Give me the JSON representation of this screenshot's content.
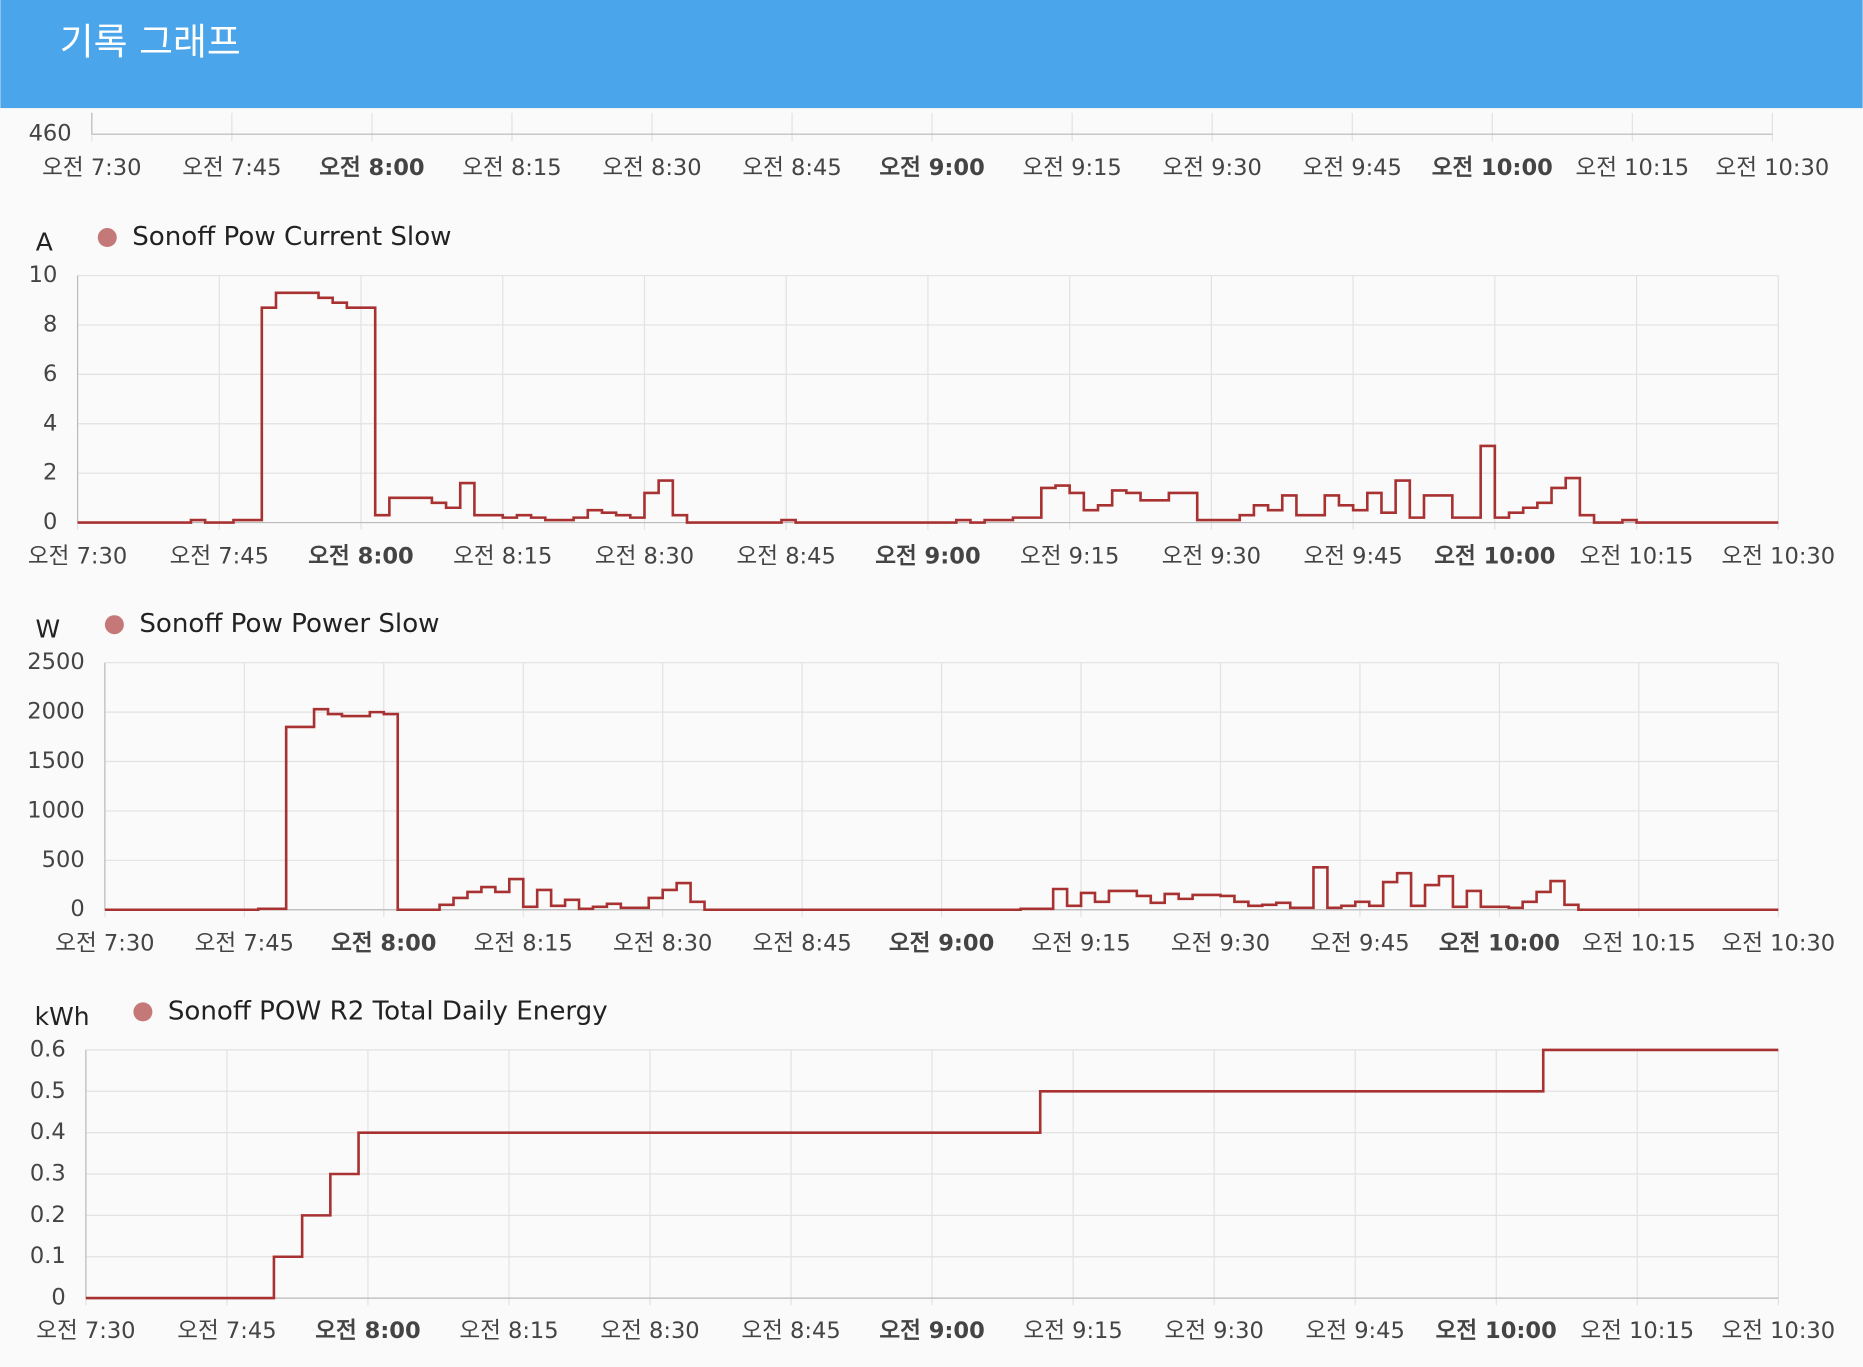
{
  "header": {
    "title": "기록 그래프"
  },
  "chart_data": [
    {
      "type": "line",
      "grid": true,
      "yticks": [
        460
      ],
      "xlim": [
        450,
        630
      ],
      "xticks": [
        {
          "value": 450,
          "label": "오전 7:30"
        },
        {
          "value": 465,
          "label": "오전 7:45"
        },
        {
          "value": 480,
          "label": "오전 8:00"
        },
        {
          "value": 495,
          "label": "오전 8:15"
        },
        {
          "value": 510,
          "label": "오전 8:30"
        },
        {
          "value": 525,
          "label": "오전 8:45"
        },
        {
          "value": 540,
          "label": "오전 9:00"
        },
        {
          "value": 555,
          "label": "오전 9:15"
        },
        {
          "value": 570,
          "label": "오전 9:30"
        },
        {
          "value": 585,
          "label": "오전 9:45"
        },
        {
          "value": 600,
          "label": "오전 10:00"
        },
        {
          "value": 615,
          "label": "오전 10:15"
        },
        {
          "value": 630,
          "label": "오전 10:30"
        }
      ]
    },
    {
      "type": "line",
      "step": true,
      "grid": true,
      "y_label": "A",
      "ylim": [
        0,
        10
      ],
      "yticks": [
        0,
        2,
        4,
        6,
        8,
        10
      ],
      "xlim": [
        450,
        630
      ],
      "xticks": [
        {
          "value": 450,
          "label": "오전 7:30"
        },
        {
          "value": 465,
          "label": "오전 7:45"
        },
        {
          "value": 480,
          "label": "오전 8:00"
        },
        {
          "value": 495,
          "label": "오전 8:15"
        },
        {
          "value": 510,
          "label": "오전 8:30"
        },
        {
          "value": 525,
          "label": "오전 8:45"
        },
        {
          "value": 540,
          "label": "오전 9:00"
        },
        {
          "value": 555,
          "label": "오전 9:15"
        },
        {
          "value": 570,
          "label": "오전 9:30"
        },
        {
          "value": 585,
          "label": "오전 9:45"
        },
        {
          "value": 600,
          "label": "오전 10:00"
        },
        {
          "value": 615,
          "label": "오전 10:15"
        },
        {
          "value": 630,
          "label": "오전 10:30"
        }
      ],
      "x": [
        450,
        462,
        463.5,
        466.5,
        469.5,
        471,
        475.5,
        477,
        478.5,
        481.5,
        483,
        487.5,
        489,
        490.5,
        492,
        495,
        496.5,
        498,
        499.5,
        502.5,
        504,
        505.5,
        507,
        508.5,
        510,
        511.5,
        513,
        514.5,
        524.5,
        526,
        543,
        544.5,
        546,
        549,
        552,
        553.5,
        555,
        556.5,
        558,
        559.5,
        561,
        562.5,
        565.5,
        568.5,
        573,
        574.5,
        576,
        577.5,
        579,
        582,
        583.5,
        585,
        586.5,
        588,
        589.5,
        591,
        592.5,
        595.5,
        598.5,
        600,
        601.5,
        603,
        604.5,
        606,
        607.5,
        609,
        610.5,
        613.5,
        615,
        630
      ],
      "series": [
        {
          "name": "Sonoff Pow Current Slow",
          "color": "#a83232",
          "values": [
            0,
            0.1,
            0,
            0.1,
            8.7,
            9.3,
            9.1,
            8.9,
            8.7,
            0.3,
            1.0,
            0.8,
            0.6,
            1.6,
            0.3,
            0.2,
            0.3,
            0.2,
            0.1,
            0.2,
            0.5,
            0.4,
            0.3,
            0.2,
            1.2,
            1.7,
            0.3,
            0,
            0.1,
            0,
            0.1,
            0,
            0.1,
            0.2,
            1.4,
            1.5,
            1.2,
            0.5,
            0.7,
            1.3,
            1.2,
            0.9,
            1.2,
            0.1,
            0.3,
            0.7,
            0.5,
            1.1,
            0.3,
            1.1,
            0.7,
            0.5,
            1.2,
            0.4,
            1.7,
            0.2,
            1.1,
            0.2,
            3.1,
            0.2,
            0.4,
            0.6,
            0.8,
            1.4,
            1.8,
            0.3,
            0,
            0.1,
            0,
            0
          ]
        }
      ]
    },
    {
      "type": "line",
      "step": true,
      "grid": true,
      "y_label": "W",
      "ylim": [
        0,
        2500
      ],
      "yticks": [
        0,
        500,
        1000,
        1500,
        2000,
        2500
      ],
      "xlim": [
        450,
        630
      ],
      "xticks": [
        {
          "value": 450,
          "label": "오전 7:30"
        },
        {
          "value": 465,
          "label": "오전 7:45"
        },
        {
          "value": 480,
          "label": "오전 8:00"
        },
        {
          "value": 495,
          "label": "오전 8:15"
        },
        {
          "value": 510,
          "label": "오전 8:30"
        },
        {
          "value": 525,
          "label": "오전 8:45"
        },
        {
          "value": 540,
          "label": "오전 9:00"
        },
        {
          "value": 555,
          "label": "오전 9:15"
        },
        {
          "value": 570,
          "label": "오전 9:30"
        },
        {
          "value": 585,
          "label": "오전 9:45"
        },
        {
          "value": 600,
          "label": "오전 10:00"
        },
        {
          "value": 615,
          "label": "오전 10:15"
        },
        {
          "value": 630,
          "label": "오전 10:30"
        }
      ],
      "x": [
        450,
        466.5,
        469.5,
        472.5,
        474,
        475.5,
        478.5,
        480,
        481.5,
        486,
        487.5,
        489,
        490.5,
        492,
        493.5,
        495,
        496.5,
        498,
        499.5,
        501,
        502.5,
        504,
        505.5,
        508.5,
        510,
        511.5,
        513,
        514.5,
        548.5,
        552,
        553.5,
        555,
        556.5,
        558,
        561,
        562.5,
        564,
        565.5,
        567,
        570,
        571.5,
        573,
        574.5,
        576,
        577.5,
        580,
        581.5,
        583,
        584.5,
        586,
        587.5,
        589,
        590.5,
        592,
        593.5,
        595,
        596.5,
        598,
        601,
        602.5,
        604,
        605.5,
        607,
        608.5,
        630
      ],
      "series": [
        {
          "name": "Sonoff Pow Power Slow",
          "color": "#a83232",
          "values": [
            0,
            10,
            1850,
            2030,
            1980,
            1960,
            2000,
            1980,
            0,
            50,
            120,
            180,
            230,
            180,
            310,
            30,
            200,
            40,
            100,
            10,
            30,
            60,
            20,
            120,
            200,
            270,
            80,
            0,
            10,
            210,
            40,
            170,
            80,
            190,
            140,
            70,
            160,
            110,
            150,
            140,
            80,
            40,
            50,
            70,
            20,
            430,
            20,
            40,
            80,
            40,
            280,
            370,
            40,
            250,
            340,
            30,
            190,
            30,
            20,
            80,
            180,
            290,
            50,
            0,
            0
          ]
        }
      ]
    },
    {
      "type": "line",
      "step": true,
      "grid": true,
      "y_label": "kWh",
      "ylim": [
        0,
        0.6
      ],
      "yticks": [
        0,
        0.1,
        0.2,
        0.3,
        0.4,
        0.5,
        0.6
      ],
      "xlim": [
        450,
        630
      ],
      "xticks": [
        {
          "value": 450,
          "label": "오전 7:30"
        },
        {
          "value": 465,
          "label": "오전 7:45"
        },
        {
          "value": 480,
          "label": "오전 8:00"
        },
        {
          "value": 495,
          "label": "오전 8:15"
        },
        {
          "value": 510,
          "label": "오전 8:30"
        },
        {
          "value": 525,
          "label": "오전 8:45"
        },
        {
          "value": 540,
          "label": "오전 9:00"
        },
        {
          "value": 555,
          "label": "오전 9:15"
        },
        {
          "value": 570,
          "label": "오전 9:30"
        },
        {
          "value": 585,
          "label": "오전 9:45"
        },
        {
          "value": 600,
          "label": "오전 10:00"
        },
        {
          "value": 615,
          "label": "오전 10:15"
        },
        {
          "value": 630,
          "label": "오전 10:30"
        }
      ],
      "x": [
        450,
        470,
        473,
        476,
        479,
        551.5,
        605,
        630
      ],
      "series": [
        {
          "name": "Sonoff POW R2 Total Daily Energy",
          "color": "#a83232",
          "values": [
            0,
            0.1,
            0.2,
            0.3,
            0.4,
            0.5,
            0.6,
            0.6
          ]
        }
      ]
    }
  ]
}
